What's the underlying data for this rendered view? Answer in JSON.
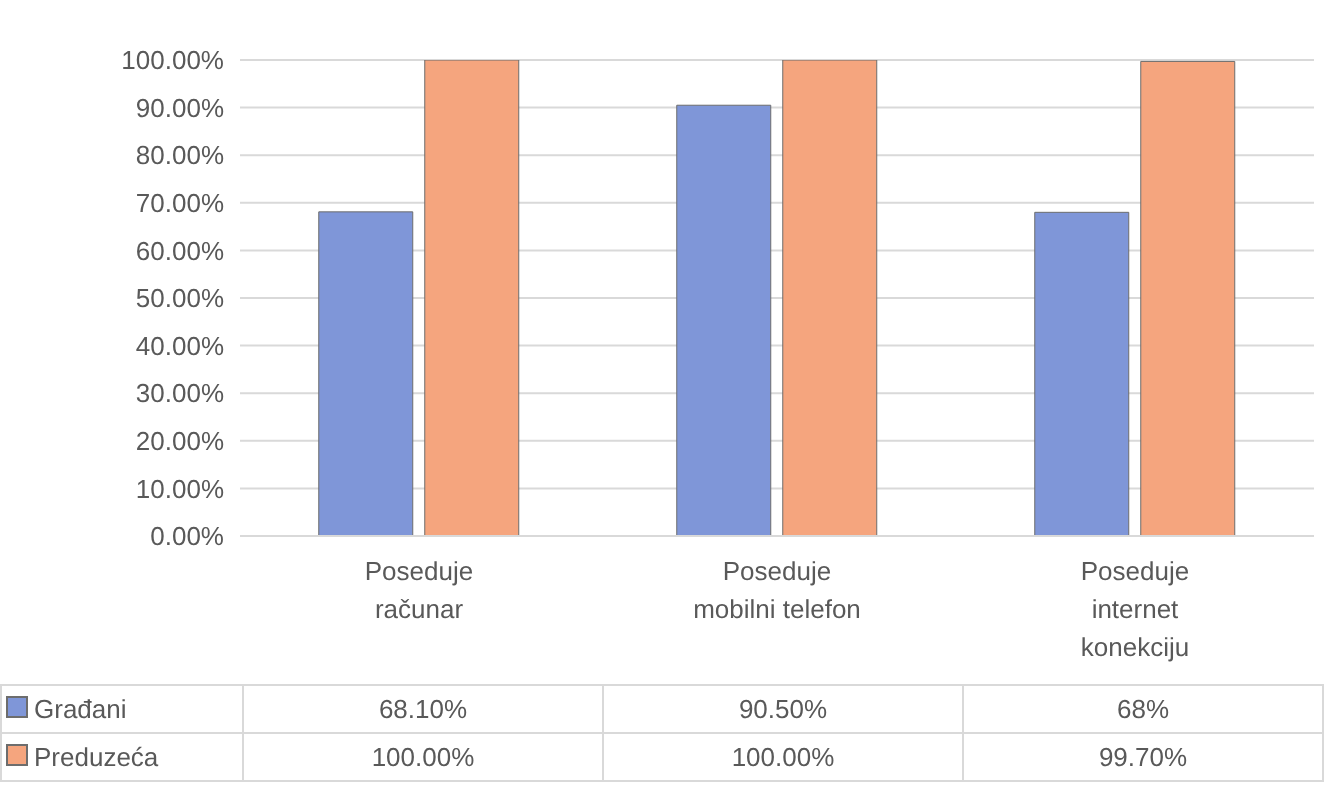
{
  "chart_data": {
    "type": "bar",
    "categories": [
      "Poseduje računar",
      "Poseduje mobilni telefon",
      "Poseduje internet konekciju"
    ],
    "series": [
      {
        "name": "Građani",
        "color": "#7f96d8",
        "values": [
          68.1,
          90.5,
          68
        ],
        "value_labels": [
          "68.10%",
          "90.50%",
          "68%"
        ]
      },
      {
        "name": "Preduzeća",
        "color": "#f5a57e",
        "values": [
          100,
          100,
          99.7
        ],
        "value_labels": [
          "100.00%",
          "100.00%",
          "99.70%"
        ]
      }
    ],
    "ylim": [
      0,
      100
    ],
    "yticks": [
      {
        "value": 0,
        "label": "0.00%"
      },
      {
        "value": 10,
        "label": "10.00%"
      },
      {
        "value": 20,
        "label": "20.00%"
      },
      {
        "value": 30,
        "label": "30.00%"
      },
      {
        "value": 40,
        "label": "40.00%"
      },
      {
        "value": 50,
        "label": "50.00%"
      },
      {
        "value": 60,
        "label": "60.00%"
      },
      {
        "value": 70,
        "label": "70.00%"
      },
      {
        "value": 80,
        "label": "80.00%"
      },
      {
        "value": 90,
        "label": "90.00%"
      },
      {
        "value": 100,
        "label": "100.00%"
      }
    ],
    "grid": "y",
    "legend": "bottom left"
  }
}
